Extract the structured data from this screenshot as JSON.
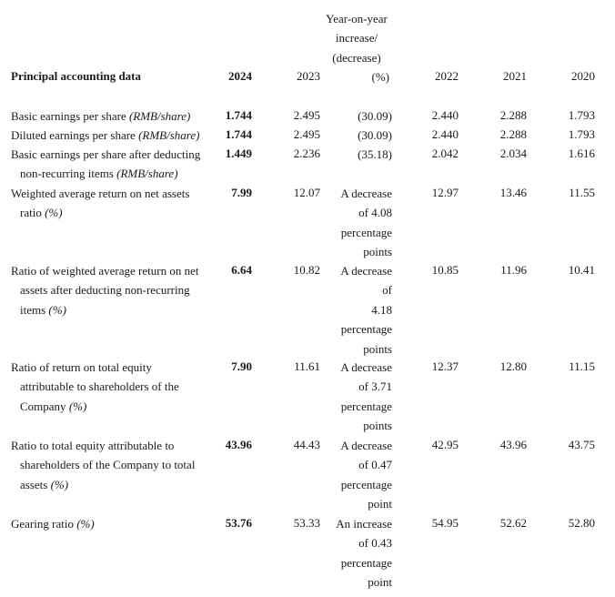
{
  "header": {
    "title": "Principal accounting data",
    "yoy_line1": "Year-on-year",
    "yoy_line2": "increase/",
    "yoy_line3": "(decrease)",
    "yoy_line4": "(%)",
    "years": [
      "2024",
      "2023",
      "2022",
      "2021",
      "2020"
    ]
  },
  "rows": [
    {
      "label_line1": "Basic earnings per share ",
      "label_unit": "(RMB/share)",
      "v2024": "1.744",
      "v2023": "2.495",
      "yoy": "(30.09)",
      "v2022": "2.440",
      "v2021": "2.288",
      "v2020": "1.793"
    },
    {
      "label_line1": "Diluted earnings per share ",
      "label_unit": "(RMB/share)",
      "v2024": "1.744",
      "v2023": "2.495",
      "yoy": "(30.09)",
      "v2022": "2.440",
      "v2021": "2.288",
      "v2020": "1.793"
    },
    {
      "label_line1": "Basic earnings per share after deducting",
      "label_line2": "non-recurring items ",
      "label_unit": "(RMB/share)",
      "v2024": "1.449",
      "v2023": "2.236",
      "yoy": "(35.18)",
      "v2022": "2.042",
      "v2021": "2.034",
      "v2020": "1.616"
    },
    {
      "label_line1": "Weighted average return on net assets",
      "label_line2": "ratio ",
      "label_unit": "(%)",
      "v2024": "7.99",
      "v2023": "12.07",
      "yoy_lines": [
        "A decrease",
        "of 4.08",
        "percentage",
        "points"
      ],
      "v2022": "12.97",
      "v2021": "13.46",
      "v2020": "11.55"
    },
    {
      "label_line1": "Ratio of weighted average return on net",
      "label_line2": "assets after deducting non-recurring",
      "label_line3": "items ",
      "label_unit": "(%)",
      "v2024": "6.64",
      "v2023": "10.82",
      "yoy_lines": [
        "A decrease",
        "of",
        "4.18",
        "percentage",
        "points"
      ],
      "v2022": "10.85",
      "v2021": "11.96",
      "v2020": "10.41"
    },
    {
      "label_line1": "Ratio of return on total equity",
      "label_line2": "attributable to shareholders of the",
      "label_line3": "Company ",
      "label_unit": "(%)",
      "v2024": "7.90",
      "v2023": "11.61",
      "yoy_lines": [
        "A decrease",
        "of 3.71",
        "percentage",
        "points"
      ],
      "v2022": "12.37",
      "v2021": "12.80",
      "v2020": "11.15"
    },
    {
      "label_line1": "Ratio to total equity attributable to",
      "label_line2": "shareholders of the Company to total",
      "label_line3": "assets ",
      "label_unit": "(%)",
      "v2024": "43.96",
      "v2023": "44.43",
      "yoy_lines": [
        "A decrease",
        "of 0.47",
        "percentage",
        "point"
      ],
      "v2022": "42.95",
      "v2021": "43.96",
      "v2020": "43.75"
    },
    {
      "label_line1": "Gearing ratio ",
      "label_unit": "(%)",
      "v2024": "53.76",
      "v2023": "53.33",
      "yoy_lines": [
        "An increase",
        "of 0.43",
        "percentage",
        "point"
      ],
      "v2022": "54.95",
      "v2021": "52.62",
      "v2020": "52.80"
    }
  ]
}
